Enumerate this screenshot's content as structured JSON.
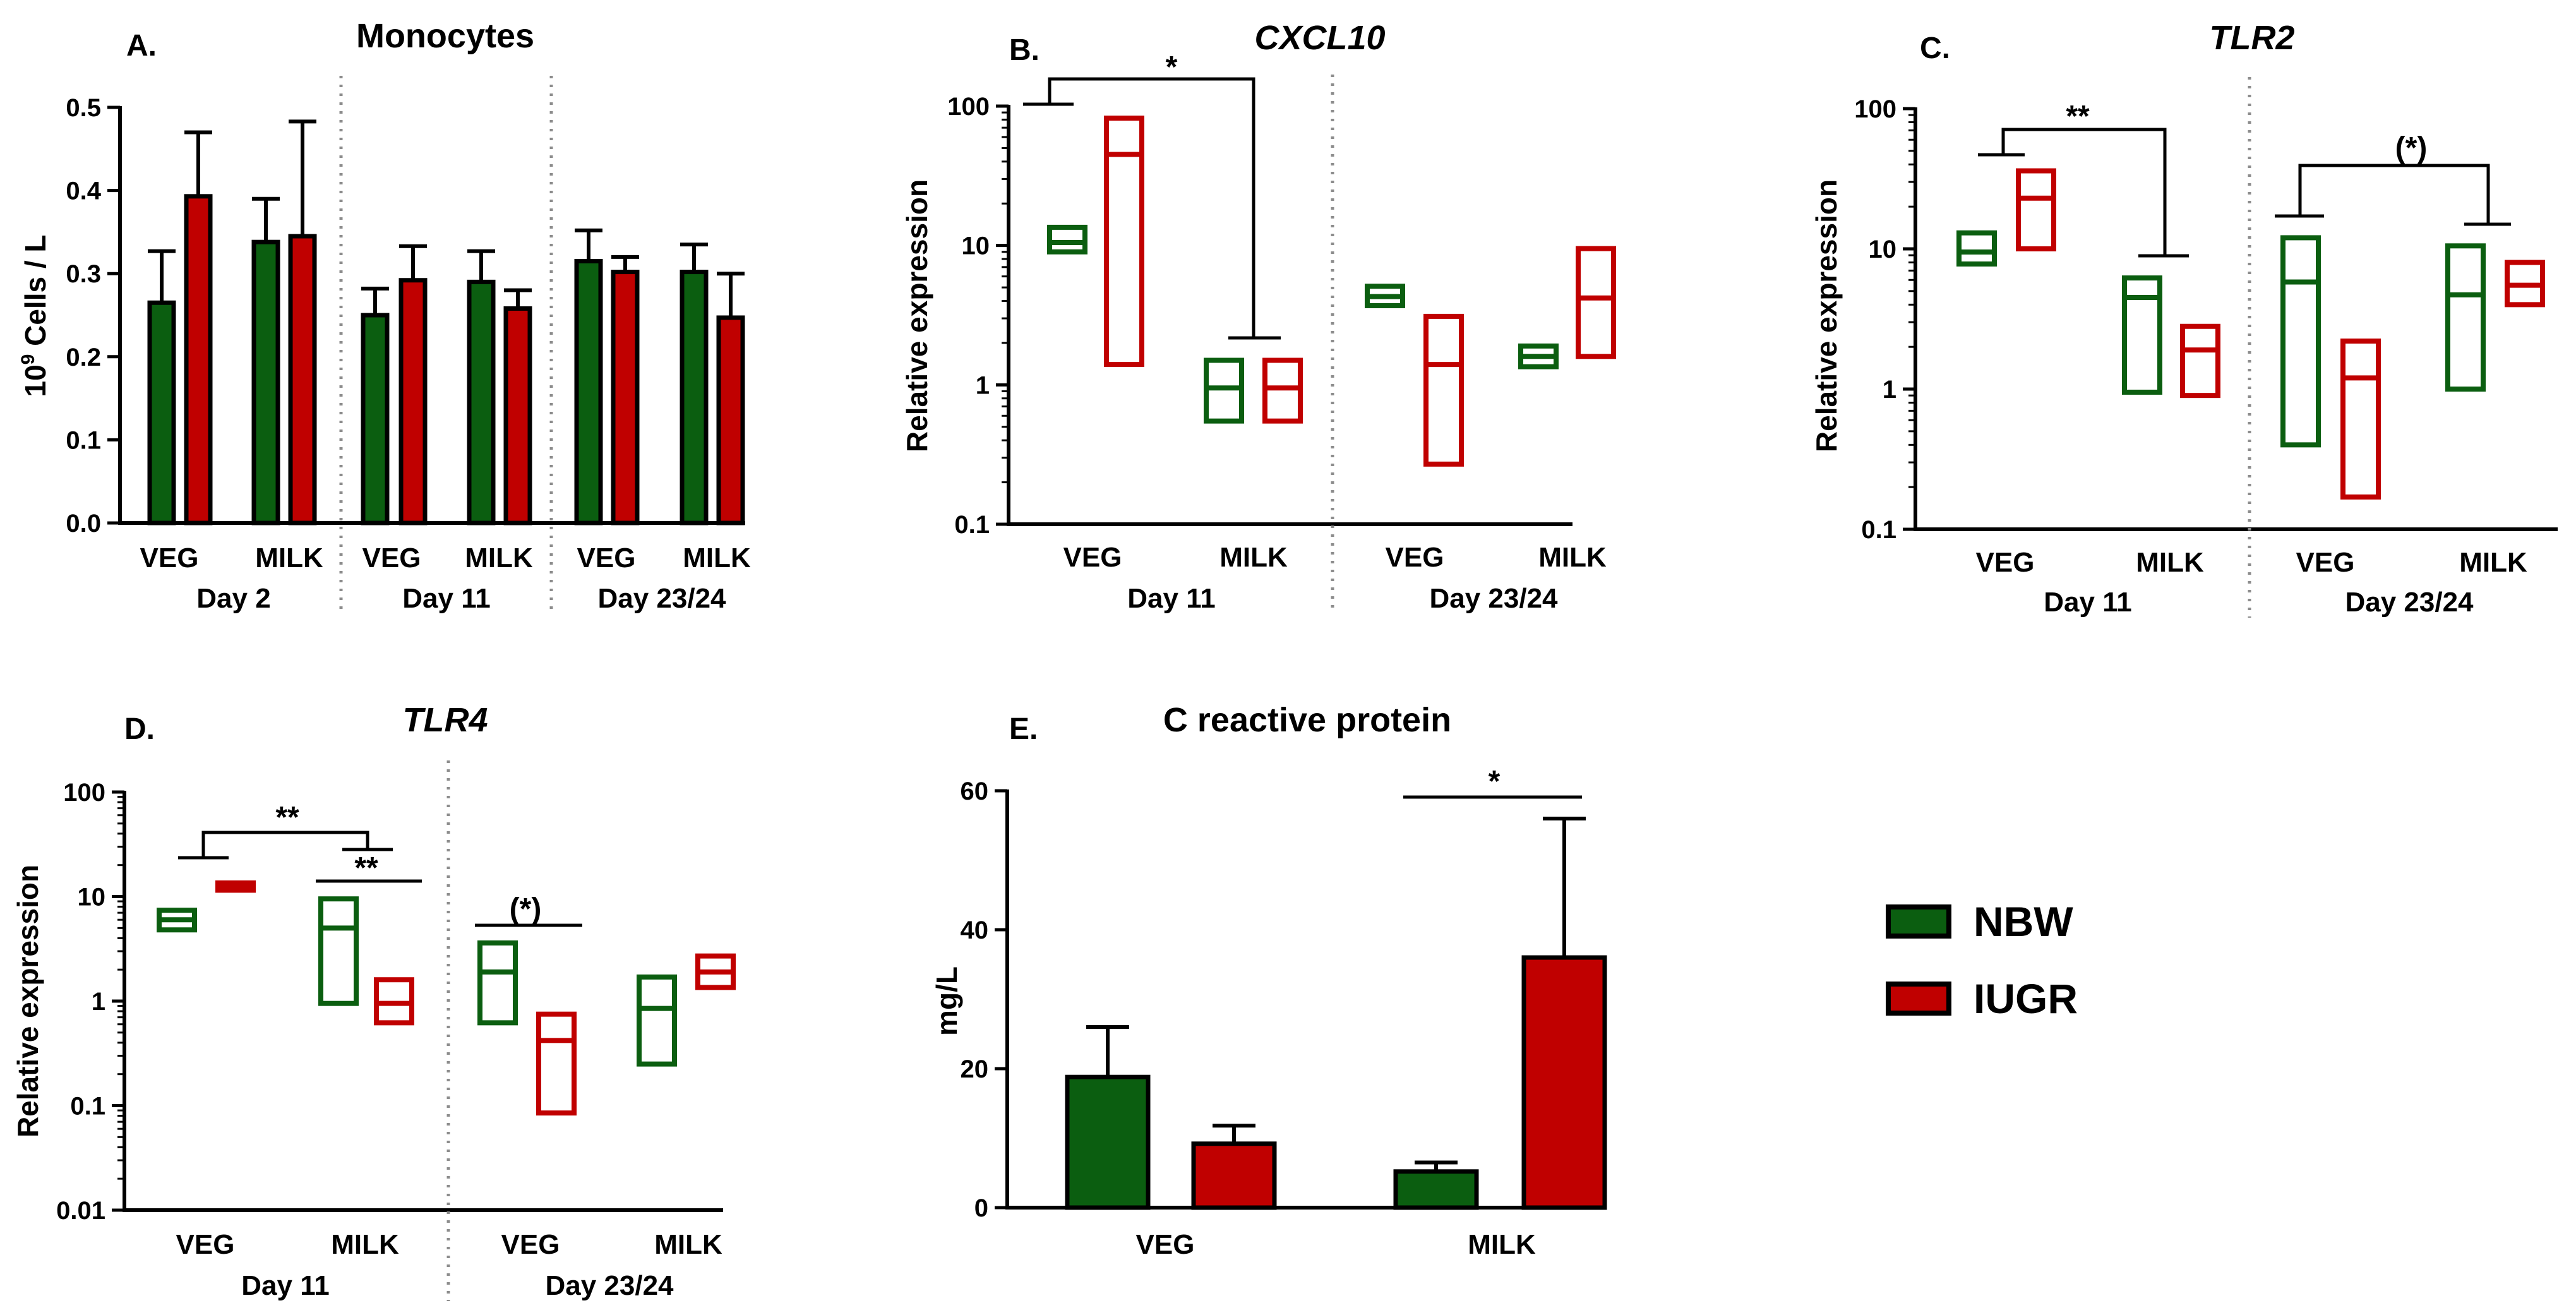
{
  "colors": {
    "NBW": "#0b5e10",
    "IUGR": "#c00000",
    "ink": "#000000",
    "divider": "#8c8c8c"
  },
  "legend": {
    "items": [
      "NBW",
      "IUGR"
    ]
  },
  "chart_data": [
    {
      "id": "A",
      "panel_label": "A.",
      "type": "bar",
      "title": "Monocytes",
      "title_italic": false,
      "ylabel_base": "10",
      "ylabel_sup": "9",
      "ylabel_rest": " Cells / L",
      "scale": "linear",
      "ylim": [
        0,
        0.5
      ],
      "ticks": [
        0,
        0.1,
        0.2,
        0.3,
        0.4,
        0.5
      ],
      "tick_labels": [
        "0.0",
        "0.1",
        "0.2",
        "0.3",
        "0.4",
        "0.5"
      ],
      "groups": [
        {
          "label": "Day 2",
          "categories": [
            {
              "label": "VEG",
              "NBW": {
                "mean": 0.265,
                "err": 0.327
              },
              "IUGR": {
                "mean": 0.393,
                "err": 0.47
              }
            },
            {
              "label": "MILK",
              "NBW": {
                "mean": 0.338,
                "err": 0.39
              },
              "IUGR": {
                "mean": 0.345,
                "err": 0.483
              }
            }
          ]
        },
        {
          "label": "Day 11",
          "categories": [
            {
              "label": "VEG",
              "NBW": {
                "mean": 0.25,
                "err": 0.282
              },
              "IUGR": {
                "mean": 0.292,
                "err": 0.333
              }
            },
            {
              "label": "MILK",
              "NBW": {
                "mean": 0.29,
                "err": 0.327
              },
              "IUGR": {
                "mean": 0.258,
                "err": 0.28
              }
            }
          ]
        },
        {
          "label": "Day 23/24",
          "categories": [
            {
              "label": "VEG",
              "NBW": {
                "mean": 0.315,
                "err": 0.352
              },
              "IUGR": {
                "mean": 0.302,
                "err": 0.32
              }
            },
            {
              "label": "MILK",
              "NBW": {
                "mean": 0.302,
                "err": 0.335
              },
              "IUGR": {
                "mean": 0.247,
                "err": 0.3
              }
            }
          ]
        }
      ],
      "annotations": []
    },
    {
      "id": "B",
      "panel_label": "B.",
      "type": "floating_bar",
      "title": "CXCL10",
      "title_italic": true,
      "ylabel": "Relative expression",
      "scale": "log",
      "ylim": [
        0.1,
        100
      ],
      "ticks": [
        0.1,
        1,
        10,
        100
      ],
      "tick_labels": [
        "0.1",
        "1",
        "10",
        "100"
      ],
      "groups": [
        {
          "label": "Day 11",
          "categories": [
            {
              "label": "VEG",
              "NBW": {
                "min": 9,
                "mid": 10.5,
                "max": 13.5
              },
              "IUGR": {
                "min": 1.4,
                "mid": 45,
                "max": 82
              }
            },
            {
              "label": "MILK",
              "NBW": {
                "min": 0.55,
                "mid": 0.95,
                "max": 1.5
              },
              "IUGR": {
                "min": 0.55,
                "mid": 0.95,
                "max": 1.5
              }
            }
          ]
        },
        {
          "label": "Day 23/24",
          "categories": [
            {
              "label": "VEG",
              "NBW": {
                "min": 3.7,
                "mid": 4.3,
                "max": 5.1
              },
              "IUGR": {
                "min": 0.27,
                "mid": 1.4,
                "max": 3.1
              }
            },
            {
              "label": "MILK",
              "NBW": {
                "min": 1.35,
                "mid": 1.6,
                "max": 1.9
              },
              "IUGR": {
                "min": 1.6,
                "mid": 4.2,
                "max": 9.5
              }
            }
          ]
        }
      ],
      "annotations": [
        {
          "text": "*",
          "bracket": "Day 11 VEG vs Day 11 MILK"
        }
      ]
    },
    {
      "id": "C",
      "panel_label": "C.",
      "type": "floating_bar",
      "title": "TLR2",
      "title_italic": true,
      "ylabel": "Relative expression",
      "scale": "log",
      "ylim": [
        0.1,
        100
      ],
      "ticks": [
        0.1,
        1,
        10,
        100
      ],
      "tick_labels": [
        "0.1",
        "1",
        "10",
        "100"
      ],
      "groups": [
        {
          "label": "Day 11",
          "categories": [
            {
              "label": "VEG",
              "NBW": {
                "min": 7.8,
                "mid": 9.5,
                "max": 13
              },
              "IUGR": {
                "min": 10,
                "mid": 23,
                "max": 36
              }
            },
            {
              "label": "MILK",
              "NBW": {
                "min": 0.95,
                "mid": 4.5,
                "max": 6.2
              },
              "IUGR": {
                "min": 0.9,
                "mid": 1.9,
                "max": 2.8
              }
            }
          ]
        },
        {
          "label": "Day 23/24",
          "categories": [
            {
              "label": "VEG",
              "NBW": {
                "min": 0.4,
                "mid": 5.8,
                "max": 12
              },
              "IUGR": {
                "min": 0.17,
                "mid": 1.2,
                "max": 2.2
              }
            },
            {
              "label": "MILK",
              "NBW": {
                "min": 1.0,
                "mid": 4.7,
                "max": 10.5
              },
              "IUGR": {
                "min": 4.0,
                "mid": 5.5,
                "max": 8.0
              }
            }
          ]
        }
      ],
      "annotations": [
        {
          "text": "**",
          "bracket": "Day 11 VEG vs Day 11 MILK"
        },
        {
          "text": "(*)",
          "bracket": "Day 23/24 VEG vs Day 23/24 MILK"
        }
      ]
    },
    {
      "id": "D",
      "panel_label": "D.",
      "type": "floating_bar",
      "title": "TLR4",
      "title_italic": true,
      "ylabel": "Relative expression",
      "scale": "log",
      "ylim": [
        0.01,
        100
      ],
      "ticks": [
        0.01,
        0.1,
        1,
        10,
        100
      ],
      "tick_labels": [
        "0.01",
        "0.1",
        "1",
        "10",
        "100"
      ],
      "groups": [
        {
          "label": "Day 11",
          "categories": [
            {
              "label": "VEG",
              "NBW": {
                "min": 4.8,
                "mid": 6,
                "max": 7.4
              },
              "IUGR": {
                "min": 11.5,
                "mid": 12.5,
                "max": 13.5
              }
            },
            {
              "label": "MILK",
              "NBW": {
                "min": 0.95,
                "mid": 5,
                "max": 9.5
              },
              "IUGR": {
                "min": 0.62,
                "mid": 0.95,
                "max": 1.6
              }
            }
          ]
        },
        {
          "label": "Day 23/24",
          "categories": [
            {
              "label": "VEG",
              "NBW": {
                "min": 0.62,
                "mid": 1.9,
                "max": 3.6
              },
              "IUGR": {
                "min": 0.085,
                "mid": 0.42,
                "max": 0.75
              }
            },
            {
              "label": "MILK",
              "NBW": {
                "min": 0.25,
                "mid": 0.85,
                "max": 1.7
              },
              "IUGR": {
                "min": 1.35,
                "mid": 1.9,
                "max": 2.7
              }
            }
          ]
        }
      ],
      "annotations": [
        {
          "text": "**",
          "bracket": "Day 11 VEG vs Day 11 MILK"
        },
        {
          "text": "**",
          "bracket": "Day 11 MILK NBW vs IUGR"
        },
        {
          "text": "(*)",
          "bracket": "Day 23/24 VEG NBW vs IUGR"
        }
      ]
    },
    {
      "id": "E",
      "panel_label": "E.",
      "type": "bar",
      "title": "C reactive protein",
      "title_italic": false,
      "ylabel": "mg/L",
      "scale": "linear",
      "ylim": [
        0,
        60
      ],
      "ticks": [
        0,
        20,
        40,
        60
      ],
      "tick_labels": [
        "0",
        "20",
        "40",
        "60"
      ],
      "groups": [
        {
          "label": "",
          "categories": [
            {
              "label": "VEG",
              "NBW": {
                "mean": 18.8,
                "err": 26
              },
              "IUGR": {
                "mean": 9.2,
                "err": 11.8
              }
            },
            {
              "label": "MILK",
              "NBW": {
                "mean": 5.2,
                "err": 6.5
              },
              "IUGR": {
                "mean": 36,
                "err": 56
              }
            }
          ]
        }
      ],
      "annotations": [
        {
          "text": "*",
          "bracket": "MILK NBW vs IUGR"
        }
      ]
    }
  ]
}
